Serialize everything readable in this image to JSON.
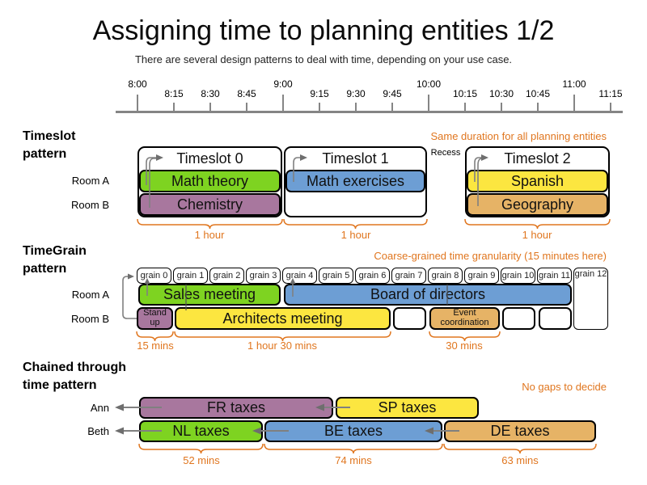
{
  "header": {
    "title": "Assigning time to planning entities 1/2",
    "subtitle": "There are several design patterns to deal with time, depending on your use case."
  },
  "timeline": {
    "labels": [
      {
        "text": "8:00",
        "major": true
      },
      {
        "text": "8:15",
        "major": false
      },
      {
        "text": "8:30",
        "major": false
      },
      {
        "text": "8:45",
        "major": false
      },
      {
        "text": "9:00",
        "major": true
      },
      {
        "text": "9:15",
        "major": false
      },
      {
        "text": "9:30",
        "major": false
      },
      {
        "text": "9:45",
        "major": false
      },
      {
        "text": "10:00",
        "major": true
      },
      {
        "text": "10:15",
        "major": false
      },
      {
        "text": "10:30",
        "major": false
      },
      {
        "text": "10:45",
        "major": false
      },
      {
        "text": "11:00",
        "major": true
      },
      {
        "text": "11:15",
        "major": false
      }
    ]
  },
  "timeslot": {
    "section_label": "Timeslot\npattern",
    "note": "Same duration for all planning entities",
    "rooms": [
      "Room A",
      "Room B"
    ],
    "slots": [
      "Timeslot 0",
      "Timeslot 1",
      "Timeslot 2"
    ],
    "recess": "Recess",
    "lessons": {
      "math_theory": "Math theory",
      "chemistry": "Chemistry",
      "math_exercises": "Math exercises",
      "spanish": "Spanish",
      "geography": "Geography"
    },
    "durations": [
      "1 hour",
      "1 hour",
      "1 hour"
    ]
  },
  "timegrain": {
    "section_label": "TimeGrain\npattern",
    "note": "Coarse-grained time granularity (15 minutes here)",
    "rooms": [
      "Room A",
      "Room B"
    ],
    "grains": [
      "grain 0",
      "grain 1",
      "grain 2",
      "grain 3",
      "grain 4",
      "grain 5",
      "grain 6",
      "grain 7",
      "grain 8",
      "grain 9",
      "grain 10",
      "grain 11",
      "grain 12"
    ],
    "meetings": {
      "sales": "Sales meeting",
      "board": "Board of directors",
      "standup": "Stand up",
      "architects": "Architects meeting",
      "event": "Event coordination"
    },
    "durations": [
      "15 mins",
      "1 hour 30 mins",
      "30 mins"
    ]
  },
  "chained": {
    "section_label": "Chained through\ntime pattern",
    "note": "No gaps to decide",
    "people": [
      "Ann",
      "Beth"
    ],
    "tasks": {
      "fr": "FR taxes",
      "sp": "SP taxes",
      "nl": "NL taxes",
      "be": "BE taxes",
      "de": "DE taxes"
    },
    "durations": [
      "52 mins",
      "74 mins",
      "63 mins"
    ]
  },
  "colors": {
    "green": "#7ED321",
    "purple": "#A8779E",
    "blue": "#6D9ED4",
    "yellow": "#FCE640",
    "tan": "#E6B366",
    "orange": "#E0761F",
    "gray": "#808080"
  }
}
